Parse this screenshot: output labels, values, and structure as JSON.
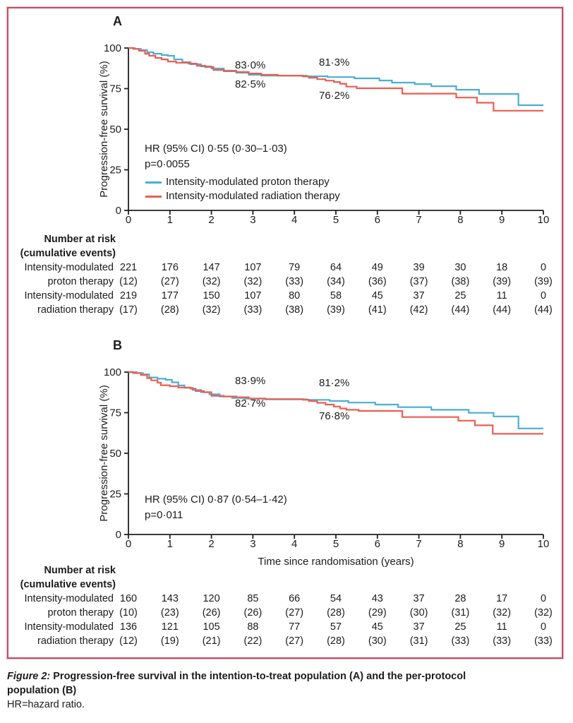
{
  "figure": {
    "caption_label": "Figure 2:",
    "caption_text": "Progression-free survival in the intention-to-treat population (A) and the per-protocol",
    "caption_text2": "population (B)",
    "caption_note": "HR=hazard ratio."
  },
  "colors": {
    "proton": "#4aafd5",
    "radiation": "#eb5e51",
    "axis": "#231f20",
    "border": "#c14f66",
    "text": "#1c1c1c"
  },
  "chart_data": [
    {
      "type": "line",
      "panel_label": "A",
      "title": "A",
      "ylabel": "Progression-free survival (%)",
      "xlabel": "",
      "xlim": [
        0,
        10
      ],
      "ylim": [
        0,
        100
      ],
      "x_ticks": [
        0,
        1,
        2,
        3,
        4,
        5,
        6,
        7,
        8,
        9,
        10
      ],
      "y_ticks": [
        0,
        25,
        50,
        75,
        100
      ],
      "grid": false,
      "legend_position": "inside-bottom-left",
      "stats": {
        "hr": "HR (95% CI) 0·55 (0·30–1·03)",
        "p": "p=0·0055"
      },
      "annotations": [
        {
          "text": "83·0%",
          "left": 333,
          "top": 84
        },
        {
          "text": "82·5%",
          "left": 333,
          "top": 111
        },
        {
          "text": "81·3%",
          "left": 452,
          "top": 80
        },
        {
          "text": "76·2%",
          "left": 452,
          "top": 127
        }
      ],
      "legend": [
        {
          "name": "Intensity-modulated proton therapy",
          "color_key": "proton"
        },
        {
          "name": "Intensity-modulated radiation therapy",
          "color_key": "radiation"
        }
      ],
      "series": [
        {
          "name": "Intensity-modulated proton therapy",
          "color_key": "proton",
          "steps": [
            [
              0,
              100
            ],
            [
              0.15,
              99.5
            ],
            [
              0.3,
              98.7
            ],
            [
              0.45,
              97.4
            ],
            [
              0.6,
              96.5
            ],
            [
              0.8,
              95.7
            ],
            [
              0.95,
              95.2
            ],
            [
              1.1,
              93.0
            ],
            [
              1.3,
              91.3
            ],
            [
              1.5,
              90.0
            ],
            [
              1.75,
              88.7
            ],
            [
              2.0,
              87.4
            ],
            [
              2.3,
              86.1
            ],
            [
              2.6,
              84.8
            ],
            [
              2.9,
              83.5
            ],
            [
              3.2,
              83.0
            ],
            [
              4.3,
              82.6
            ],
            [
              4.8,
              82.1
            ],
            [
              5.45,
              81.3
            ],
            [
              6.05,
              80.0
            ],
            [
              6.35,
              78.7
            ],
            [
              6.9,
              77.8
            ],
            [
              7.3,
              76.5
            ],
            [
              7.9,
              74.3
            ],
            [
              8.45,
              71.7
            ],
            [
              9.4,
              64.8
            ],
            [
              10,
              64.8
            ]
          ]
        },
        {
          "name": "Intensity-modulated radiation therapy",
          "color_key": "radiation",
          "steps": [
            [
              0,
              100
            ],
            [
              0.12,
              99.5
            ],
            [
              0.25,
              98.3
            ],
            [
              0.4,
              96.5
            ],
            [
              0.5,
              95.2
            ],
            [
              0.65,
              93.9
            ],
            [
              0.8,
              93.0
            ],
            [
              0.95,
              91.7
            ],
            [
              1.15,
              90.9
            ],
            [
              1.45,
              90.4
            ],
            [
              1.65,
              89.1
            ],
            [
              1.85,
              88.3
            ],
            [
              2.05,
              86.5
            ],
            [
              2.3,
              85.7
            ],
            [
              2.6,
              85.2
            ],
            [
              2.9,
              84.3
            ],
            [
              3.2,
              83.5
            ],
            [
              3.6,
              83.0
            ],
            [
              4.2,
              82.5
            ],
            [
              4.35,
              81.7
            ],
            [
              4.55,
              80.8
            ],
            [
              4.75,
              79.9
            ],
            [
              4.95,
              79.1
            ],
            [
              5.1,
              78.0
            ],
            [
              5.25,
              76.2
            ],
            [
              5.5,
              75.2
            ],
            [
              6.6,
              71.9
            ],
            [
              7.9,
              69.5
            ],
            [
              8.4,
              66.3
            ],
            [
              8.8,
              61.4
            ],
            [
              10,
              61.4
            ]
          ]
        }
      ],
      "at_risk": {
        "header": [
          "Number at risk",
          "(cumulative events)"
        ],
        "rows": [
          {
            "label": [
              "Intensity-modulated",
              "proton therapy"
            ],
            "n": [
              221,
              176,
              147,
              107,
              79,
              64,
              49,
              39,
              30,
              18,
              0
            ],
            "events": [
              "(12)",
              "(27)",
              "(32)",
              "(32)",
              "(33)",
              "(34)",
              "(36)",
              "(37)",
              "(38)",
              "(39)",
              "(39)"
            ]
          },
          {
            "label": [
              "Intensity-modulated",
              "radiation therapy"
            ],
            "n": [
              219,
              177,
              150,
              107,
              80,
              58,
              45,
              37,
              25,
              11,
              0
            ],
            "events": [
              "(17)",
              "(28)",
              "(32)",
              "(33)",
              "(38)",
              "(39)",
              "(41)",
              "(42)",
              "(44)",
              "(44)",
              "(44)"
            ]
          }
        ]
      }
    },
    {
      "type": "line",
      "panel_label": "B",
      "title": "B",
      "ylabel": "Progression-free survival (%)",
      "xlabel": "Time since randomisation (years)",
      "xlim": [
        0,
        10
      ],
      "ylim": [
        0,
        100
      ],
      "x_ticks": [
        0,
        1,
        2,
        3,
        4,
        5,
        6,
        7,
        8,
        9,
        10
      ],
      "y_ticks": [
        0,
        25,
        50,
        75,
        100
      ],
      "grid": false,
      "stats": {
        "hr": "HR (95% CI) 0·87 (0·54–1·42)",
        "p": "p=0·011"
      },
      "annotations": [
        {
          "text": "83·9%",
          "left": 333,
          "top": 531
        },
        {
          "text": "82·7%",
          "left": 333,
          "top": 563
        },
        {
          "text": "81·2%",
          "left": 452,
          "top": 534
        },
        {
          "text": "76·8%",
          "left": 452,
          "top": 581
        }
      ],
      "series": [
        {
          "name": "Intensity-modulated proton therapy",
          "color_key": "proton",
          "steps": [
            [
              0,
              100
            ],
            [
              0.2,
              99.4
            ],
            [
              0.35,
              98.6
            ],
            [
              0.5,
              96.7
            ],
            [
              0.7,
              95.9
            ],
            [
              0.9,
              95.2
            ],
            [
              1.05,
              93.7
            ],
            [
              1.2,
              91.8
            ],
            [
              1.35,
              90.3
            ],
            [
              1.55,
              89.0
            ],
            [
              1.75,
              87.6
            ],
            [
              1.95,
              86.3
            ],
            [
              2.2,
              84.9
            ],
            [
              2.5,
              84.1
            ],
            [
              2.8,
              83.6
            ],
            [
              3.3,
              83.2
            ],
            [
              4.3,
              82.9
            ],
            [
              4.85,
              82.2
            ],
            [
              5.3,
              81.2
            ],
            [
              5.95,
              80.0
            ],
            [
              6.5,
              78.4
            ],
            [
              7.3,
              76.8
            ],
            [
              8.2,
              74.9
            ],
            [
              8.8,
              72.7
            ],
            [
              9.4,
              65.3
            ],
            [
              10,
              65.3
            ]
          ]
        },
        {
          "name": "Intensity-modulated radiation therapy",
          "color_key": "radiation",
          "steps": [
            [
              0,
              100
            ],
            [
              0.12,
              99.4
            ],
            [
              0.3,
              98.2
            ],
            [
              0.45,
              96.2
            ],
            [
              0.55,
              94.9
            ],
            [
              0.7,
              93.5
            ],
            [
              0.78,
              91.9
            ],
            [
              1.0,
              91.3
            ],
            [
              1.2,
              90.5
            ],
            [
              1.5,
              89.8
            ],
            [
              1.62,
              88.3
            ],
            [
              1.82,
              87.6
            ],
            [
              2.0,
              85.4
            ],
            [
              2.3,
              85.0
            ],
            [
              2.6,
              84.5
            ],
            [
              2.9,
              83.8
            ],
            [
              3.3,
              83.4
            ],
            [
              4.2,
              83.0
            ],
            [
              4.35,
              82.1
            ],
            [
              4.55,
              81.1
            ],
            [
              4.75,
              80.0
            ],
            [
              4.95,
              78.8
            ],
            [
              5.1,
              77.6
            ],
            [
              5.25,
              76.8
            ],
            [
              5.55,
              76.1
            ],
            [
              6.6,
              72.3
            ],
            [
              7.95,
              70.1
            ],
            [
              8.35,
              67.2
            ],
            [
              8.78,
              62.0
            ],
            [
              10,
              62.0
            ]
          ]
        }
      ],
      "at_risk": {
        "header": [
          "Number at risk",
          "(cumulative events)"
        ],
        "rows": [
          {
            "label": [
              "Intensity-modulated",
              "proton therapy"
            ],
            "n": [
              160,
              143,
              120,
              85,
              66,
              54,
              43,
              37,
              28,
              17,
              0
            ],
            "events": [
              "(10)",
              "(23)",
              "(26)",
              "(26)",
              "(27)",
              "(28)",
              "(29)",
              "(30)",
              "(31)",
              "(32)",
              "(32)"
            ]
          },
          {
            "label": [
              "Intensity-modulated",
              "radiation therapy"
            ],
            "n": [
              136,
              121,
              105,
              88,
              77,
              57,
              45,
              37,
              25,
              11,
              0
            ],
            "events": [
              "(12)",
              "(19)",
              "(21)",
              "(22)",
              "(27)",
              "(28)",
              "(30)",
              "(31)",
              "(33)",
              "(33)",
              "(33)"
            ]
          }
        ]
      }
    }
  ]
}
